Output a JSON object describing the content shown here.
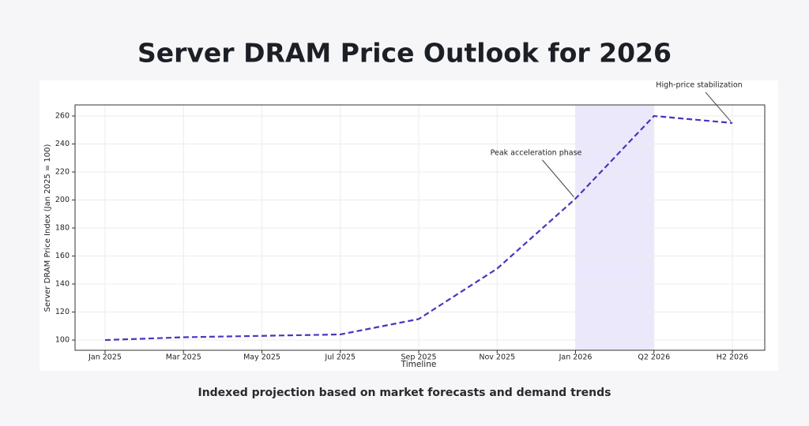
{
  "chart_data": {
    "type": "line",
    "title": "Server DRAM Price Outlook for 2026",
    "subtitle": "Indexed projection based on market forecasts and demand trends",
    "x_label": "Timeline",
    "y_label": "Server DRAM Price Index (Jan 2025 = 100)",
    "categories": [
      "Jan 2025",
      "Mar 2025",
      "May 2025",
      "Jul 2025",
      "Sep 2025",
      "Nov 2025",
      "Jan 2026",
      "Q2 2026",
      "H2 2026"
    ],
    "series": [
      {
        "color": "#4a35c0",
        "values": [
          100,
          102,
          103,
          104,
          115,
          151,
          201,
          260,
          255
        ]
      }
    ],
    "ylim": [
      92.7,
      267.9
    ],
    "yticks": [
      100,
      120,
      140,
      160,
      180,
      200,
      220,
      240,
      260
    ],
    "grid": true,
    "highlight": {
      "from": "Jan 2026",
      "to": "Q2 2026",
      "color": "#ece8fb"
    },
    "annotations": [
      {
        "text": "Peak acceleration phase",
        "at": "Jan 2026"
      },
      {
        "text": "High-price stabilization",
        "at": "H2 2026"
      }
    ]
  }
}
